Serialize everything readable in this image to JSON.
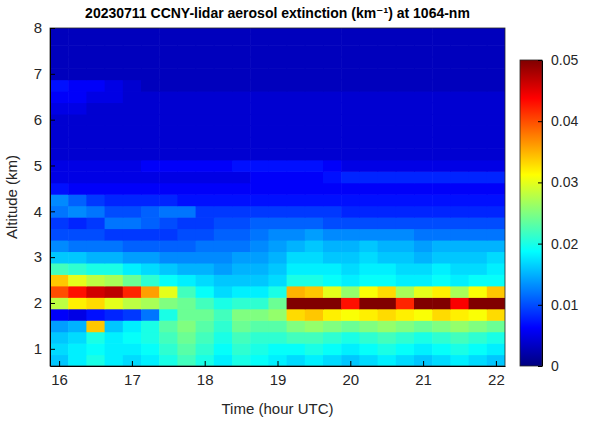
{
  "chart_data": {
    "type": "heatmap",
    "title": "20230711 CCNY-lidar aerosol extinction (km⁻¹) at 1064-nm",
    "x_label": "Time (hour UTC)",
    "y_label": "Altitude (km)",
    "x": [
      16.0,
      16.25,
      16.5,
      16.75,
      17.0,
      17.25,
      17.5,
      17.75,
      18.0,
      18.25,
      18.5,
      18.75,
      19.0,
      19.25,
      19.5,
      19.75,
      20.0,
      20.25,
      20.5,
      20.75,
      21.0,
      21.25,
      21.5,
      21.75,
      22.0
    ],
    "y": [
      0.75,
      1.0,
      1.25,
      1.5,
      1.75,
      2.0,
      2.25,
      2.5,
      2.75,
      3.0,
      3.25,
      3.5,
      3.75,
      4.0,
      4.25,
      4.5,
      4.75,
      5.0,
      5.25,
      5.5,
      5.75,
      6.0,
      6.25,
      6.5,
      6.75,
      7.0,
      7.25,
      7.5,
      7.75,
      8.0
    ],
    "values": [
      [
        0.016,
        0.018,
        0.02,
        0.018,
        0.017,
        0.018,
        0.02,
        0.022,
        0.02,
        0.018,
        0.02,
        0.019,
        0.018,
        0.017,
        0.018,
        0.017,
        0.016,
        0.017,
        0.018,
        0.017,
        0.016,
        0.017,
        0.018,
        0.017,
        0.016
      ],
      [
        0.017,
        0.018,
        0.019,
        0.018,
        0.018,
        0.019,
        0.021,
        0.023,
        0.021,
        0.019,
        0.021,
        0.02,
        0.019,
        0.019,
        0.02,
        0.019,
        0.018,
        0.019,
        0.02,
        0.019,
        0.018,
        0.019,
        0.02,
        0.019,
        0.018
      ],
      [
        0.016,
        0.017,
        0.02,
        0.018,
        0.019,
        0.02,
        0.022,
        0.024,
        0.022,
        0.02,
        0.022,
        0.021,
        0.021,
        0.022,
        0.022,
        0.021,
        0.02,
        0.021,
        0.022,
        0.021,
        0.02,
        0.021,
        0.022,
        0.021,
        0.02
      ],
      [
        0.014,
        0.015,
        0.034,
        0.016,
        0.018,
        0.02,
        0.023,
        0.025,
        0.023,
        0.021,
        0.024,
        0.023,
        0.023,
        0.025,
        0.026,
        0.025,
        0.024,
        0.025,
        0.026,
        0.025,
        0.024,
        0.025,
        0.026,
        0.025,
        0.024
      ],
      [
        0.006,
        0.005,
        0.007,
        0.008,
        0.009,
        0.012,
        0.02,
        0.024,
        0.024,
        0.022,
        0.025,
        0.025,
        0.026,
        0.033,
        0.034,
        0.032,
        0.031,
        0.032,
        0.033,
        0.032,
        0.031,
        0.033,
        0.032,
        0.031,
        0.033
      ],
      [
        0.028,
        0.032,
        0.033,
        0.03,
        0.028,
        0.027,
        0.025,
        0.024,
        0.022,
        0.02,
        0.021,
        0.021,
        0.024,
        0.056,
        0.058,
        0.055,
        0.043,
        0.054,
        0.056,
        0.042,
        0.055,
        0.056,
        0.044,
        0.055,
        0.057
      ],
      [
        0.04,
        0.043,
        0.046,
        0.047,
        0.042,
        0.036,
        0.03,
        0.022,
        0.019,
        0.017,
        0.018,
        0.018,
        0.02,
        0.035,
        0.034,
        0.03,
        0.026,
        0.031,
        0.033,
        0.027,
        0.03,
        0.032,
        0.027,
        0.031,
        0.034
      ],
      [
        0.034,
        0.03,
        0.028,
        0.027,
        0.024,
        0.021,
        0.019,
        0.018,
        0.017,
        0.016,
        0.016,
        0.016,
        0.017,
        0.02,
        0.02,
        0.019,
        0.018,
        0.019,
        0.019,
        0.018,
        0.018,
        0.019,
        0.018,
        0.019,
        0.019
      ],
      [
        0.022,
        0.021,
        0.02,
        0.02,
        0.018,
        0.017,
        0.016,
        0.015,
        0.015,
        0.014,
        0.015,
        0.015,
        0.016,
        0.018,
        0.018,
        0.018,
        0.017,
        0.018,
        0.018,
        0.017,
        0.017,
        0.018,
        0.017,
        0.017,
        0.018
      ],
      [
        0.016,
        0.016,
        0.015,
        0.015,
        0.014,
        0.014,
        0.013,
        0.013,
        0.013,
        0.013,
        0.014,
        0.014,
        0.015,
        0.017,
        0.017,
        0.016,
        0.016,
        0.017,
        0.016,
        0.016,
        0.015,
        0.016,
        0.016,
        0.016,
        0.017
      ],
      [
        0.013,
        0.012,
        0.012,
        0.012,
        0.011,
        0.011,
        0.011,
        0.011,
        0.012,
        0.012,
        0.012,
        0.013,
        0.014,
        0.015,
        0.016,
        0.015,
        0.015,
        0.016,
        0.015,
        0.015,
        0.014,
        0.015,
        0.015,
        0.015,
        0.015
      ],
      [
        0.01,
        0.01,
        0.01,
        0.009,
        0.009,
        0.009,
        0.009,
        0.01,
        0.01,
        0.011,
        0.011,
        0.012,
        0.013,
        0.013,
        0.014,
        0.013,
        0.013,
        0.013,
        0.013,
        0.013,
        0.012,
        0.012,
        0.012,
        0.012,
        0.012
      ],
      [
        0.009,
        0.008,
        0.009,
        0.012,
        0.012,
        0.011,
        0.01,
        0.009,
        0.009,
        0.01,
        0.01,
        0.011,
        0.011,
        0.011,
        0.011,
        0.01,
        0.01,
        0.01,
        0.01,
        0.01,
        0.01,
        0.01,
        0.01,
        0.01,
        0.01
      ],
      [
        0.012,
        0.013,
        0.012,
        0.01,
        0.01,
        0.011,
        0.012,
        0.012,
        0.009,
        0.009,
        0.009,
        0.009,
        0.009,
        0.009,
        0.009,
        0.009,
        0.008,
        0.008,
        0.008,
        0.008,
        0.008,
        0.008,
        0.008,
        0.008,
        0.008
      ],
      [
        0.013,
        0.011,
        0.009,
        0.008,
        0.008,
        0.008,
        0.008,
        0.007,
        0.007,
        0.007,
        0.007,
        0.007,
        0.007,
        0.007,
        0.007,
        0.007,
        0.007,
        0.007,
        0.007,
        0.007,
        0.007,
        0.007,
        0.007,
        0.007,
        0.007
      ],
      [
        0.007,
        0.006,
        0.006,
        0.006,
        0.006,
        0.006,
        0.006,
        0.006,
        0.006,
        0.006,
        0.006,
        0.006,
        0.006,
        0.006,
        0.006,
        0.006,
        0.006,
        0.006,
        0.006,
        0.006,
        0.006,
        0.006,
        0.006,
        0.006,
        0.006
      ],
      [
        0.005,
        0.005,
        0.005,
        0.005,
        0.005,
        0.005,
        0.005,
        0.005,
        0.005,
        0.005,
        0.005,
        0.006,
        0.006,
        0.006,
        0.006,
        0.007,
        0.008,
        0.008,
        0.008,
        0.008,
        0.008,
        0.008,
        0.008,
        0.008,
        0.008
      ],
      [
        0.005,
        0.005,
        0.005,
        0.005,
        0.005,
        0.006,
        0.006,
        0.006,
        0.006,
        0.006,
        0.007,
        0.007,
        0.007,
        0.007,
        0.007,
        0.006,
        0.005,
        0.005,
        0.005,
        0.005,
        0.005,
        0.005,
        0.005,
        0.005,
        0.005
      ],
      [
        0.004,
        0.004,
        0.004,
        0.004,
        0.004,
        0.004,
        0.004,
        0.004,
        0.004,
        0.004,
        0.004,
        0.004,
        0.004,
        0.004,
        0.004,
        0.004,
        0.004,
        0.004,
        0.004,
        0.004,
        0.004,
        0.004,
        0.004,
        0.004,
        0.004
      ],
      [
        0.004,
        0.004,
        0.004,
        0.004,
        0.004,
        0.004,
        0.004,
        0.004,
        0.004,
        0.004,
        0.004,
        0.004,
        0.004,
        0.004,
        0.004,
        0.004,
        0.004,
        0.004,
        0.004,
        0.004,
        0.004,
        0.004,
        0.004,
        0.004,
        0.004
      ],
      [
        0.004,
        0.004,
        0.004,
        0.004,
        0.004,
        0.004,
        0.004,
        0.004,
        0.004,
        0.004,
        0.004,
        0.004,
        0.004,
        0.004,
        0.004,
        0.004,
        0.004,
        0.004,
        0.004,
        0.004,
        0.004,
        0.004,
        0.004,
        0.004,
        0.004
      ],
      [
        0.004,
        0.004,
        0.004,
        0.004,
        0.004,
        0.004,
        0.004,
        0.004,
        0.004,
        0.004,
        0.004,
        0.004,
        0.004,
        0.004,
        0.004,
        0.004,
        0.004,
        0.004,
        0.004,
        0.004,
        0.004,
        0.004,
        0.004,
        0.004,
        0.004
      ],
      [
        0.005,
        0.005,
        0.004,
        0.004,
        0.004,
        0.004,
        0.004,
        0.004,
        0.004,
        0.004,
        0.004,
        0.004,
        0.004,
        0.004,
        0.004,
        0.004,
        0.004,
        0.004,
        0.004,
        0.004,
        0.004,
        0.004,
        0.004,
        0.004,
        0.004
      ],
      [
        0.006,
        0.006,
        0.005,
        0.005,
        0.004,
        0.004,
        0.004,
        0.004,
        0.004,
        0.004,
        0.004,
        0.004,
        0.004,
        0.004,
        0.004,
        0.004,
        0.004,
        0.004,
        0.004,
        0.004,
        0.004,
        0.004,
        0.004,
        0.004,
        0.004
      ],
      [
        0.007,
        0.006,
        0.006,
        0.005,
        0.004,
        0.003,
        0.003,
        0.003,
        0.003,
        0.003,
        0.003,
        0.003,
        0.003,
        0.003,
        0.003,
        0.003,
        0.003,
        0.003,
        0.003,
        0.003,
        0.003,
        0.003,
        0.003,
        0.003,
        0.003
      ],
      [
        0.003,
        0.003,
        0.003,
        0.003,
        0.003,
        0.003,
        0.003,
        0.003,
        0.003,
        0.003,
        0.003,
        0.003,
        0.003,
        0.003,
        0.003,
        0.003,
        0.003,
        0.003,
        0.003,
        0.003,
        0.003,
        0.003,
        0.003,
        0.003,
        0.003
      ],
      [
        0.003,
        0.003,
        0.003,
        0.003,
        0.003,
        0.003,
        0.003,
        0.003,
        0.003,
        0.003,
        0.003,
        0.003,
        0.003,
        0.003,
        0.003,
        0.003,
        0.003,
        0.003,
        0.003,
        0.003,
        0.003,
        0.003,
        0.003,
        0.003,
        0.003
      ],
      [
        0.003,
        0.003,
        0.003,
        0.003,
        0.003,
        0.003,
        0.003,
        0.003,
        0.003,
        0.003,
        0.003,
        0.003,
        0.003,
        0.003,
        0.003,
        0.003,
        0.003,
        0.003,
        0.003,
        0.003,
        0.003,
        0.003,
        0.003,
        0.003,
        0.003
      ],
      [
        0.003,
        0.003,
        0.003,
        0.003,
        0.003,
        0.003,
        0.003,
        0.003,
        0.003,
        0.003,
        0.003,
        0.003,
        0.003,
        0.003,
        0.003,
        0.003,
        0.003,
        0.003,
        0.003,
        0.003,
        0.003,
        0.003,
        0.003,
        0.003,
        0.003
      ],
      [
        0.003,
        0.003,
        0.003,
        0.003,
        0.003,
        0.003,
        0.003,
        0.003,
        0.003,
        0.003,
        0.003,
        0.003,
        0.003,
        0.003,
        0.003,
        0.003,
        0.003,
        0.003,
        0.003,
        0.003,
        0.003,
        0.003,
        0.003,
        0.003,
        0.003
      ]
    ],
    "xlim": [
      15.875,
      22.125
    ],
    "xticks": [
      16,
      17,
      18,
      19,
      20,
      21,
      22
    ],
    "ylim": [
      0.625,
      8
    ],
    "yticks": [
      1,
      2,
      3,
      4,
      5,
      6,
      7,
      8
    ],
    "colorbar_lim": [
      0,
      0.05
    ],
    "colorbar_ticks": [
      0,
      0.01,
      0.02,
      0.03,
      0.04,
      0.05
    ]
  }
}
